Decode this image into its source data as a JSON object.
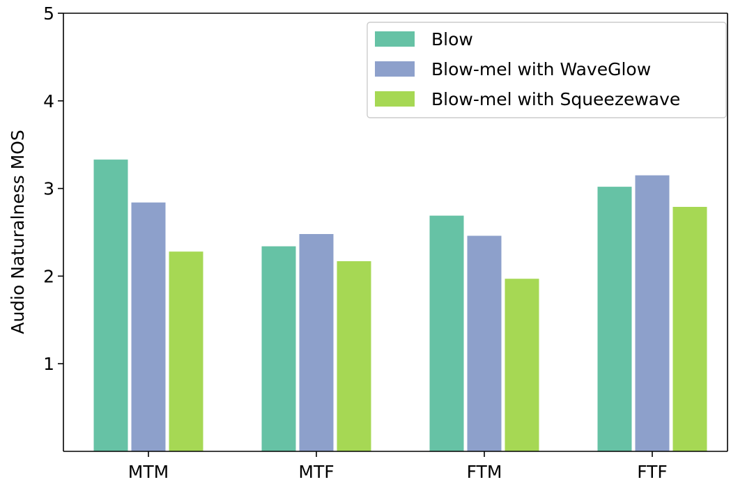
{
  "chart_data": {
    "type": "bar",
    "categories": [
      "MTM",
      "MTF",
      "FTM",
      "FTF"
    ],
    "series": [
      {
        "name": "Blow",
        "values": [
          3.33,
          2.34,
          2.69,
          3.02
        ],
        "color": "#66c2a5"
      },
      {
        "name": "Blow-mel with WaveGlow",
        "values": [
          2.84,
          2.48,
          2.46,
          3.15
        ],
        "color": "#8da0cb"
      },
      {
        "name": "Blow-mel with Squeezewave",
        "values": [
          2.28,
          2.17,
          1.97,
          2.79
        ],
        "color": "#a6d854"
      }
    ],
    "title": "",
    "xlabel": "",
    "ylabel": "Audio Naturalness MOS",
    "ylim": [
      0,
      5
    ],
    "yticks": [
      "1",
      "2",
      "3",
      "4",
      "5"
    ],
    "grid": false,
    "legend_position": "top-right"
  }
}
